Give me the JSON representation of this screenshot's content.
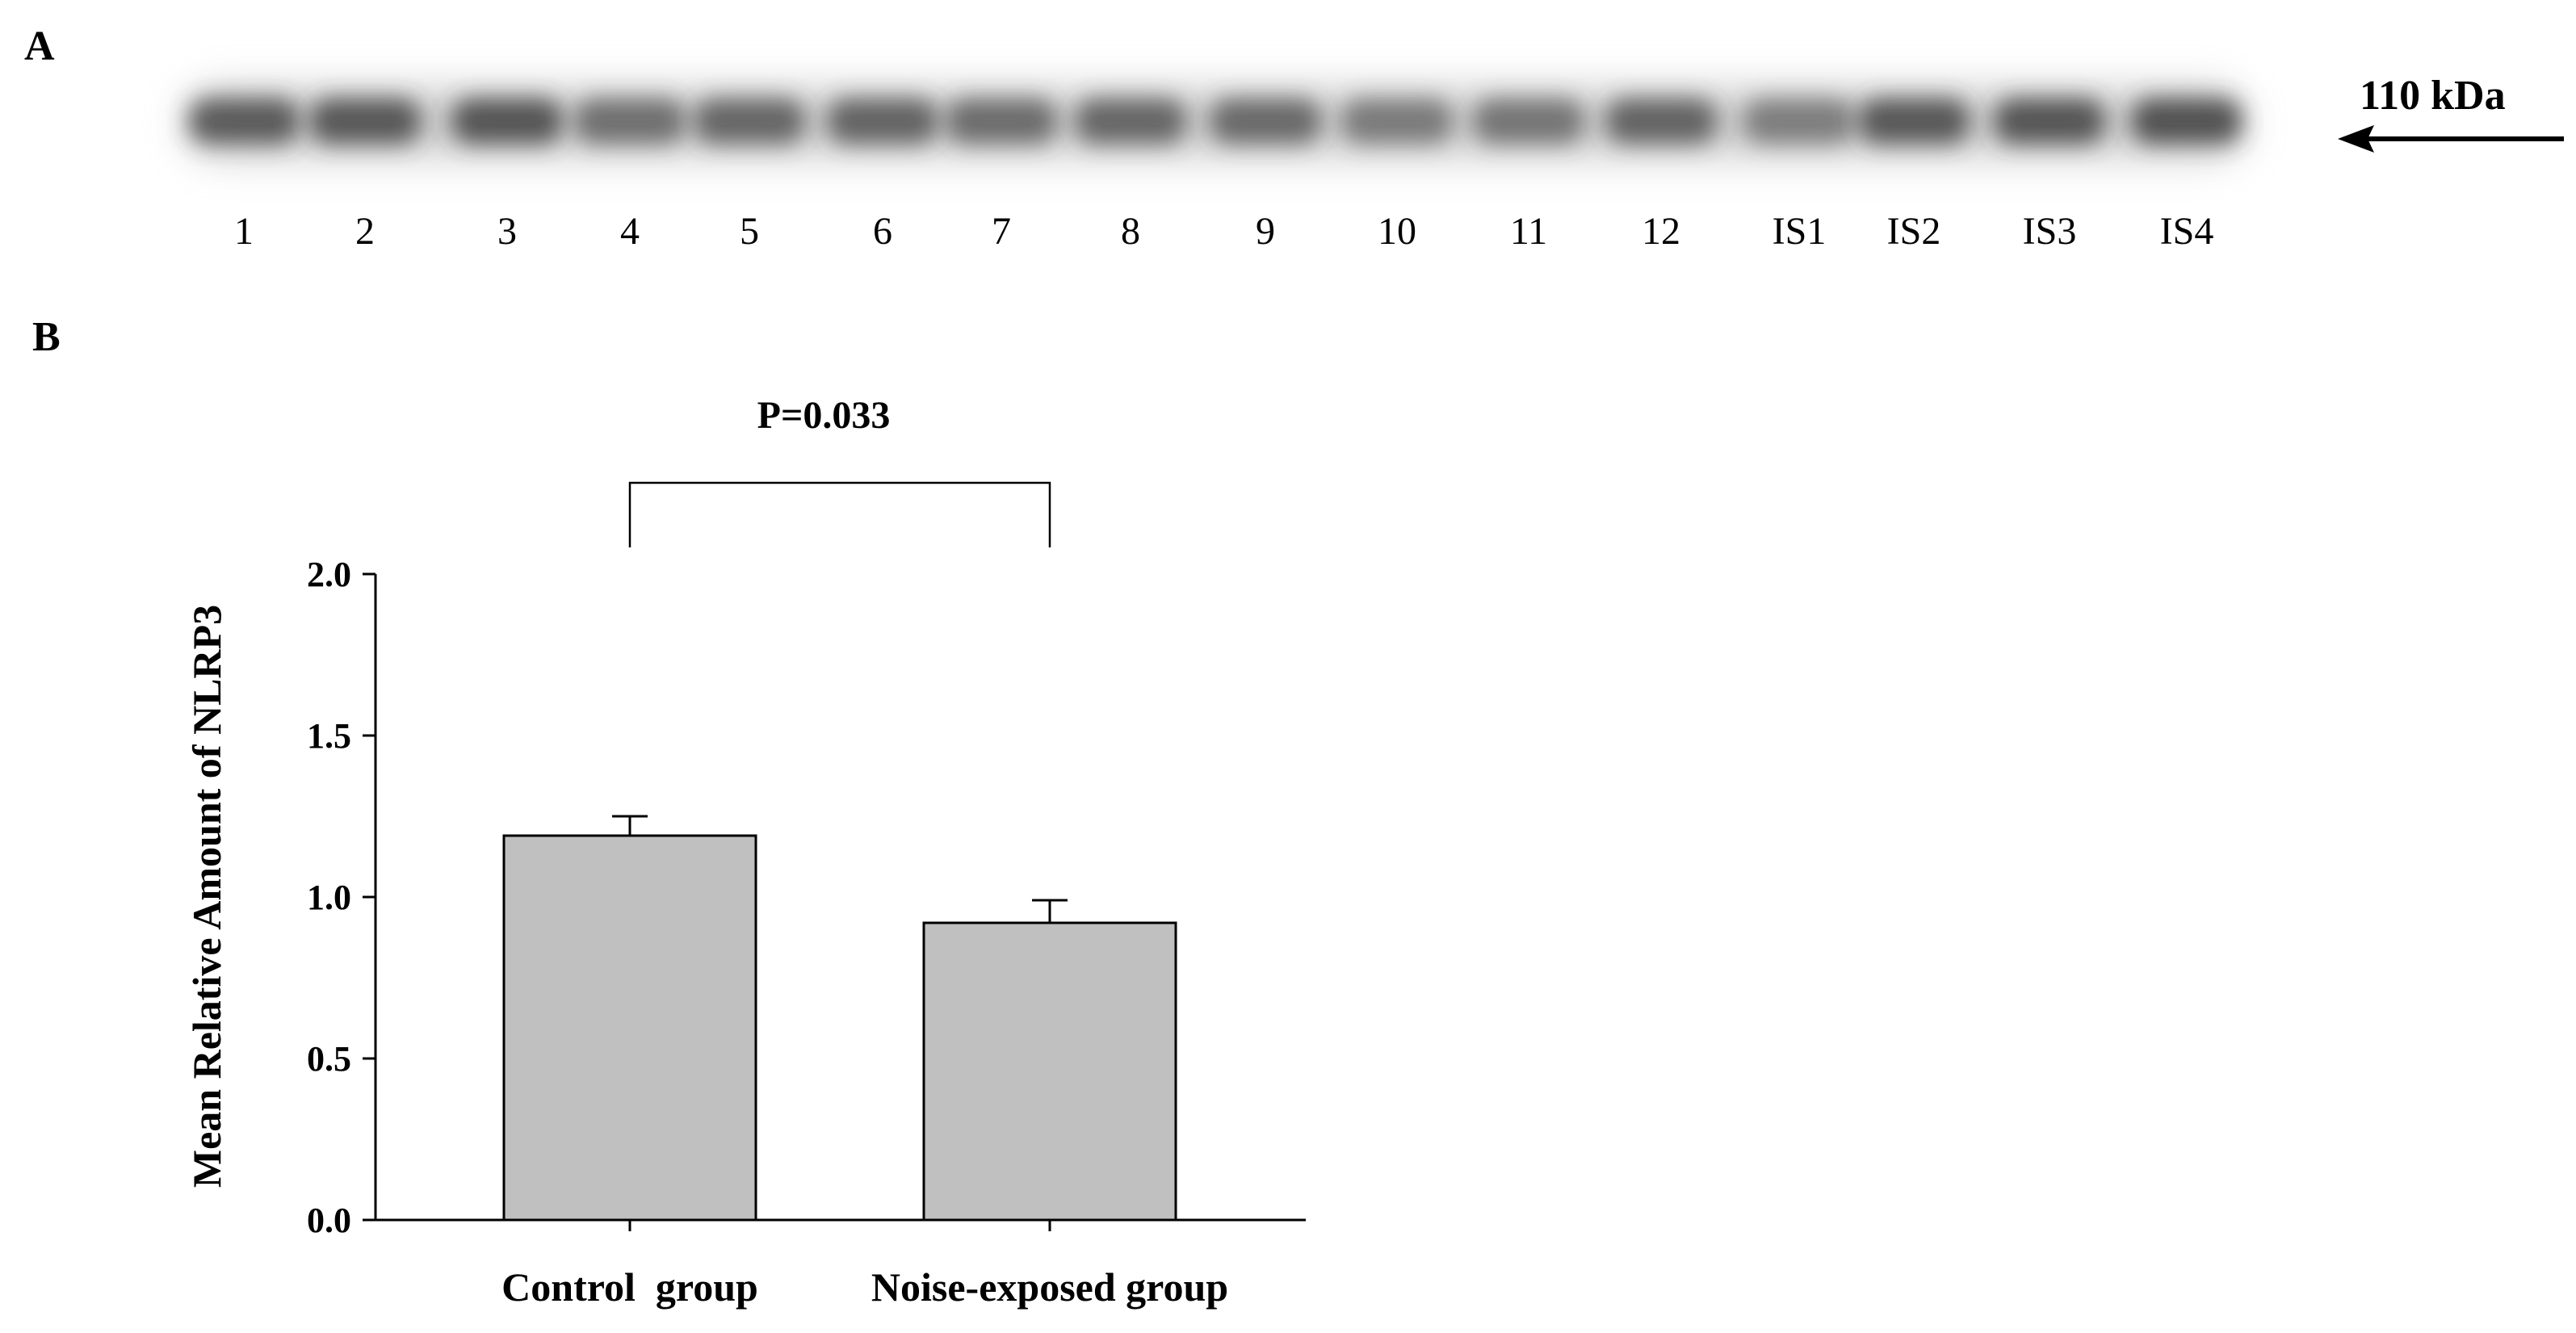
{
  "panels": {
    "a_label": "A",
    "b_label": "B"
  },
  "blot": {
    "lanes": [
      "1",
      "2",
      "3",
      "4",
      "5",
      "6",
      "7",
      "8",
      "9",
      "10",
      "11",
      "12",
      "IS1",
      "IS2",
      "IS3",
      "IS4"
    ],
    "band_intensity": [
      0.78,
      0.8,
      0.82,
      0.64,
      0.7,
      0.72,
      0.66,
      0.7,
      0.68,
      0.56,
      0.6,
      0.72,
      0.54,
      0.8,
      0.82,
      0.84
    ],
    "marker_label": "110 kDa",
    "band_color": "#3a3a3a"
  },
  "chart_data": {
    "type": "bar",
    "categories": [
      "Control  group",
      "Noise-exposed group"
    ],
    "values": [
      1.19,
      0.92
    ],
    "errors": [
      0.06,
      0.07
    ],
    "ylabel": "Mean Relative Amount of  NLRP3",
    "xlabel": "",
    "ylim": [
      0,
      2.0
    ],
    "yticks": [
      "0.0",
      "0.5",
      "1.0",
      "1.5",
      "2.0"
    ],
    "significance": "P=0.033",
    "bar_color": "#c0c0c0",
    "grid": false
  }
}
